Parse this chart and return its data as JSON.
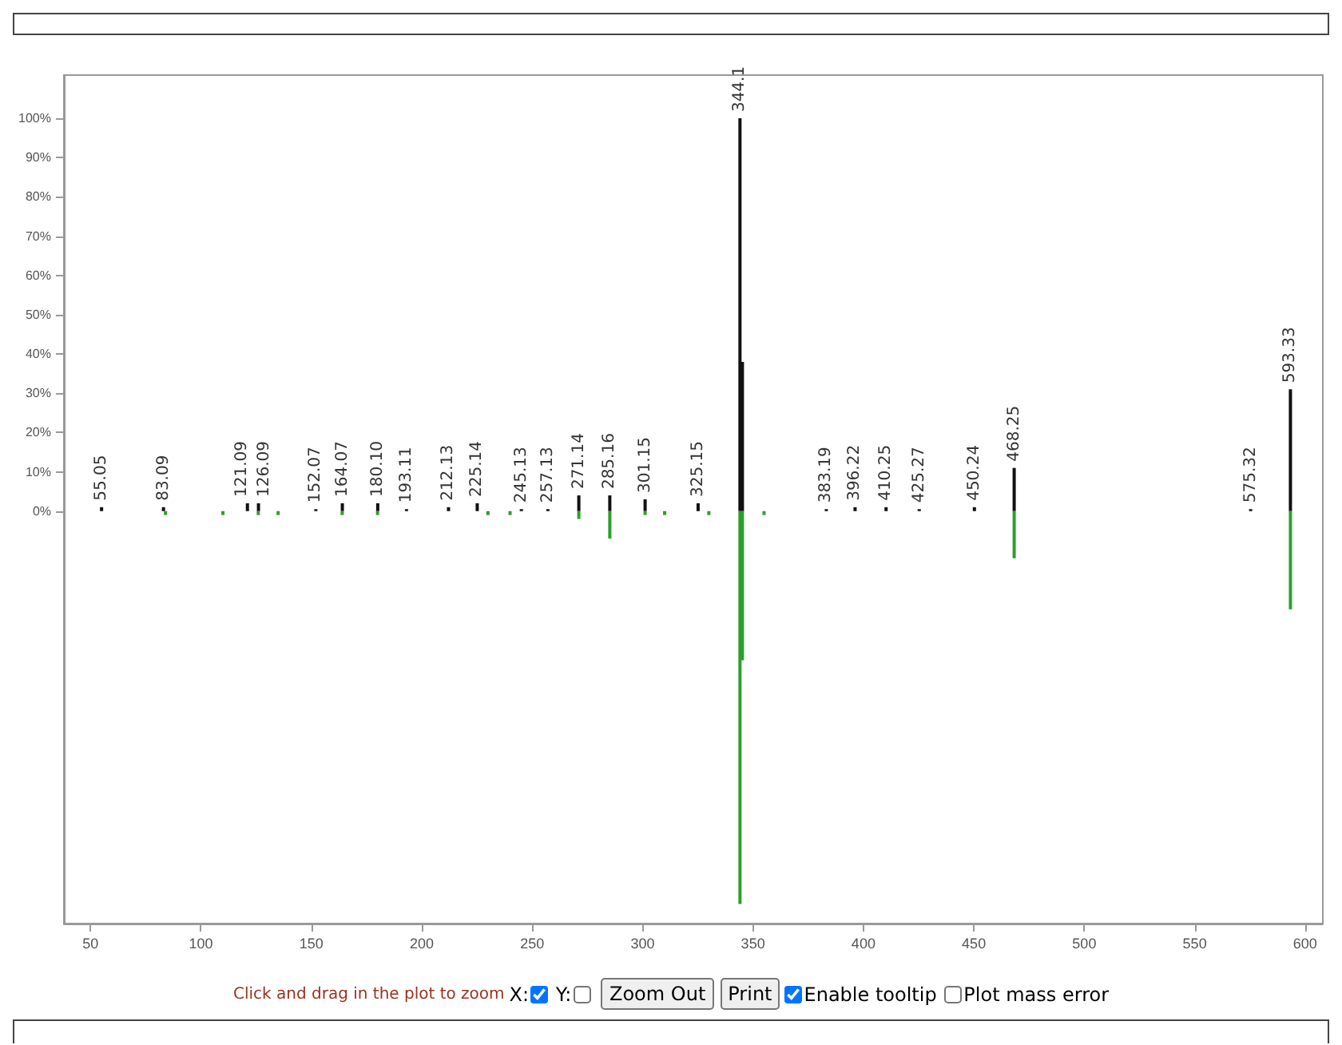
{
  "chart_data": {
    "type": "bar",
    "series": [
      {
        "color": "#111111",
        "x": [
          55.05,
          83.09,
          121.09,
          126.09,
          152.07,
          164.07,
          180.1,
          193.11,
          212.13,
          225.14,
          245.13,
          257.13,
          271.14,
          285.16,
          301.15,
          325.15,
          344.1,
          345.2,
          383.19,
          396.22,
          410.25,
          425.27,
          450.24,
          468.25,
          575.32,
          593.33
        ],
        "values": [
          1,
          1,
          2,
          2,
          0.5,
          2,
          2,
          0.5,
          1,
          2,
          0.5,
          0.5,
          4,
          4,
          3,
          2,
          100,
          38,
          0.5,
          1,
          1,
          0.5,
          1,
          11,
          0.5,
          31
        ]
      },
      {
        "color": "#2ca02c",
        "x": [
          84,
          110,
          126,
          135,
          164,
          180,
          230,
          240,
          271.14,
          285.16,
          301.15,
          310,
          330,
          344.1,
          345.2,
          355,
          468.25,
          593.33
        ],
        "values": [
          -1,
          -1,
          -1,
          -1,
          -1,
          -1,
          -1,
          -1,
          -2,
          -7,
          -1,
          -1,
          -1,
          -100,
          -38,
          -1,
          -12,
          -25
        ]
      }
    ],
    "xlim": [
      38,
      608
    ],
    "xticks": [
      50,
      100,
      150,
      200,
      250,
      300,
      350,
      400,
      450,
      500,
      550,
      600
    ],
    "ylim": [
      -105,
      111
    ],
    "yticks": [
      {
        "value": 0,
        "label": "0%"
      },
      {
        "value": 10,
        "label": "10%"
      },
      {
        "value": 20,
        "label": "20%"
      },
      {
        "value": 30,
        "label": "30%"
      },
      {
        "value": 40,
        "label": "40%"
      },
      {
        "value": 50,
        "label": "50%"
      },
      {
        "value": 60,
        "label": "60%"
      },
      {
        "value": 70,
        "label": "70%"
      },
      {
        "value": 80,
        "label": "80%"
      },
      {
        "value": 90,
        "label": "90%"
      },
      {
        "value": 100,
        "label": "100%"
      }
    ],
    "grid": false,
    "annotations": [
      {
        "text": "55.05",
        "x": 55.05,
        "y": 1
      },
      {
        "text": "83.09",
        "x": 83.09,
        "y": 1
      },
      {
        "text": "121.09",
        "x": 121.09,
        "y": 2
      },
      {
        "text": "126.09",
        "x": 126.09,
        "y": 2
      },
      {
        "text": "152.07",
        "x": 152.07,
        "y": 0.5
      },
      {
        "text": "164.07",
        "x": 164.07,
        "y": 2
      },
      {
        "text": "180.10",
        "x": 180.1,
        "y": 2
      },
      {
        "text": "193.11",
        "x": 193.11,
        "y": 0.5
      },
      {
        "text": "212.13",
        "x": 212.13,
        "y": 1
      },
      {
        "text": "225.14",
        "x": 225.14,
        "y": 2
      },
      {
        "text": "245.13",
        "x": 245.13,
        "y": 0.5
      },
      {
        "text": "257.13",
        "x": 257.13,
        "y": 0.5
      },
      {
        "text": "271.14",
        "x": 271.14,
        "y": 4
      },
      {
        "text": "285.16",
        "x": 285.16,
        "y": 4
      },
      {
        "text": "301.15",
        "x": 301.15,
        "y": 3
      },
      {
        "text": "325.15",
        "x": 325.15,
        "y": 2
      },
      {
        "text": "344.1",
        "x": 344.1,
        "y": 100
      },
      {
        "text": "383.19",
        "x": 383.19,
        "y": 0.5
      },
      {
        "text": "396.22",
        "x": 396.22,
        "y": 1
      },
      {
        "text": "410.25",
        "x": 410.25,
        "y": 1
      },
      {
        "text": "425.27",
        "x": 425.27,
        "y": 0.5
      },
      {
        "text": "450.24",
        "x": 450.24,
        "y": 1
      },
      {
        "text": "468.25",
        "x": 468.25,
        "y": 11
      },
      {
        "text": "575.32",
        "x": 575.32,
        "y": 0.5
      },
      {
        "text": "593.33",
        "x": 593.33,
        "y": 31
      },
      "Click and drag in the plot to zoom",
      "X:",
      "Y:",
      "Zoom Out",
      "Print",
      "Enable tooltip",
      "Plot mass error"
    ]
  }
}
